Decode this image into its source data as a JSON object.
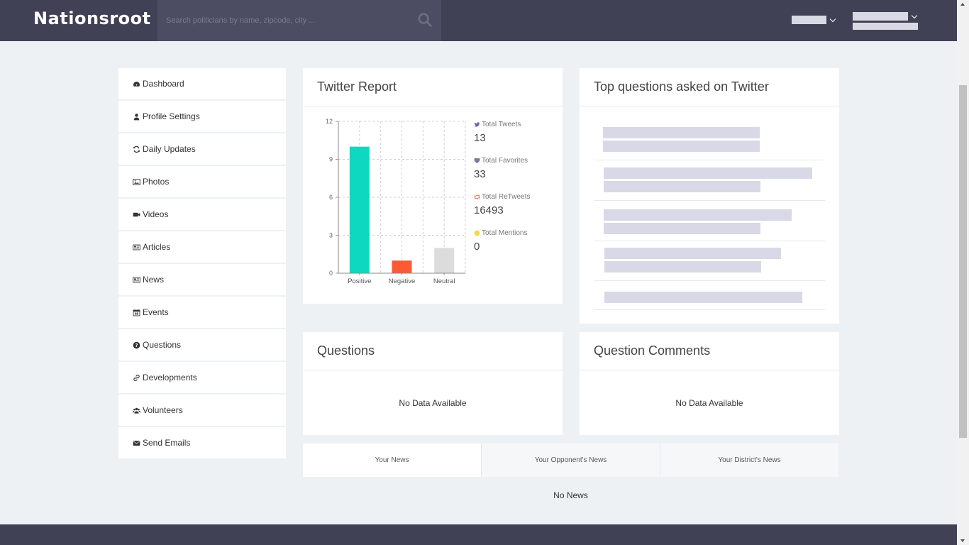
{
  "header": {
    "logo": "Nationsroot",
    "search_placeholder": "Search politicians by name, zipcode, city ..."
  },
  "sidebar": {
    "items": [
      {
        "label": "Dashboard",
        "icon": "dashboard-icon"
      },
      {
        "label": "Profile Settings",
        "icon": "user-icon"
      },
      {
        "label": "Daily Updates",
        "icon": "refresh-icon"
      },
      {
        "label": "Photos",
        "icon": "image-icon"
      },
      {
        "label": "Videos",
        "icon": "video-icon"
      },
      {
        "label": "Articles",
        "icon": "newspaper-icon"
      },
      {
        "label": "News",
        "icon": "newspaper-icon"
      },
      {
        "label": "Events",
        "icon": "calendar-icon"
      },
      {
        "label": "Questions",
        "icon": "question-circle-icon"
      },
      {
        "label": "Developments",
        "icon": "link-icon"
      },
      {
        "label": "Volunteers",
        "icon": "users-icon"
      },
      {
        "label": "Send Emails",
        "icon": "envelope-icon"
      }
    ]
  },
  "twitter_report": {
    "title": "Twitter Report",
    "stats": [
      {
        "label": "Total Tweets",
        "value": "13",
        "icon": "twitter-icon",
        "color": "#6a6aa8"
      },
      {
        "label": "Total Favorites",
        "value": "33",
        "icon": "heart-icon",
        "color": "#7a7a9a"
      },
      {
        "label": "Total ReTweets",
        "value": "16493",
        "icon": "retweet-icon",
        "color": "#f0553a"
      },
      {
        "label": "Total Mentions",
        "value": "0",
        "icon": "circle-icon",
        "color": "#f2d94e"
      }
    ]
  },
  "chart_data": {
    "type": "bar",
    "categories": [
      "Positive",
      "Negative",
      "Neutral"
    ],
    "values": [
      10,
      1,
      2
    ],
    "colors": [
      "#0ed9c0",
      "#fa5b35",
      "#dcdcdc"
    ],
    "yticks": [
      0,
      3,
      6,
      9,
      12
    ],
    "ylim": [
      0,
      12
    ],
    "grid": true
  },
  "top_questions": {
    "title": "Top questions asked on Twitter"
  },
  "questions": {
    "title": "Questions",
    "empty": "No Data Available"
  },
  "question_comments": {
    "title": "Question Comments",
    "empty": "No Data Available"
  },
  "news": {
    "tabs": [
      "Your News",
      "Your Opponent's News",
      "Your District's News"
    ],
    "empty": "No News"
  }
}
